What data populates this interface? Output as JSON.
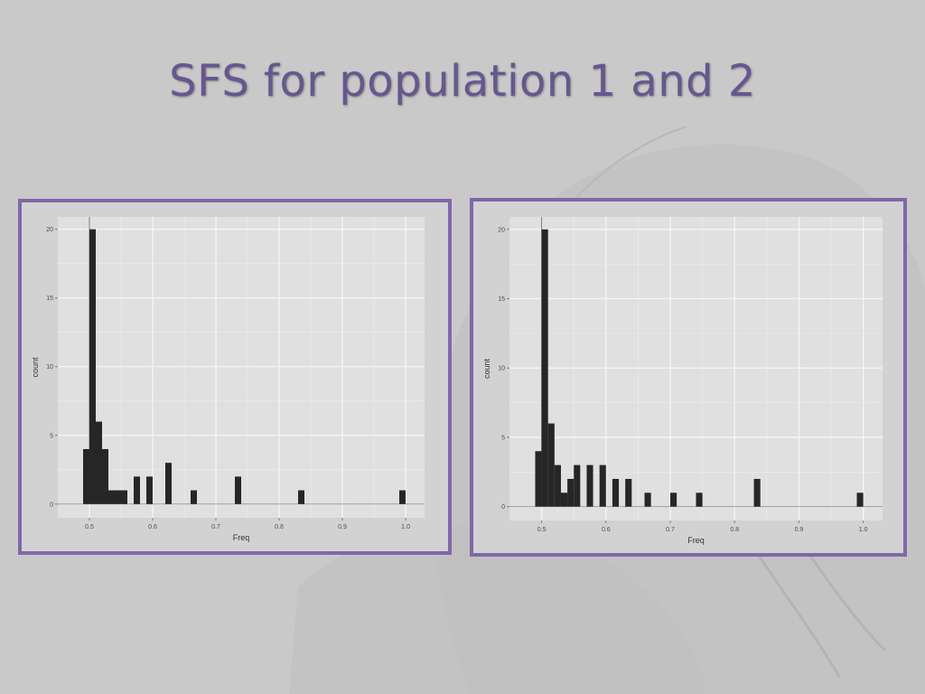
{
  "slide": {
    "title": "SFS for population 1 and 2"
  },
  "colors": {
    "background": "#c9c9c9",
    "title": "#66578f",
    "frame_border": "#8068a8",
    "panel": "#e0e0e0",
    "gridline": "#f5f5f5",
    "bar": "#262626"
  },
  "chart_data": [
    {
      "type": "bar",
      "xlabel": "Freq",
      "ylabel": "count",
      "xlim": [
        0.45,
        1.03
      ],
      "ylim": [
        -1,
        20.9
      ],
      "xticks": [
        "0.5",
        "0.6",
        "0.7",
        "0.8",
        "0.9",
        "1.0"
      ],
      "yticks": [
        "0",
        "5",
        "10",
        "15",
        "20"
      ],
      "bin_width": 0.01,
      "x": [
        0.49,
        0.5,
        0.51,
        0.52,
        0.53,
        0.54,
        0.55,
        0.57,
        0.59,
        0.62,
        0.66,
        0.73,
        0.83,
        0.99
      ],
      "values": [
        4,
        20,
        6,
        4,
        1,
        1,
        1,
        2,
        2,
        3,
        1,
        2,
        1,
        1
      ],
      "grid": true,
      "legend": "none"
    },
    {
      "type": "bar",
      "xlabel": "Freq",
      "ylabel": "count",
      "xlim": [
        0.45,
        1.03
      ],
      "ylim": [
        -1,
        20.9
      ],
      "xticks": [
        "0.5",
        "0.6",
        "0.7",
        "0.8",
        "0.9",
        "1.0"
      ],
      "yticks": [
        "0",
        "5",
        "10",
        "15",
        "20"
      ],
      "bin_width": 0.01,
      "x": [
        0.49,
        0.5,
        0.51,
        0.52,
        0.53,
        0.54,
        0.55,
        0.57,
        0.59,
        0.61,
        0.63,
        0.66,
        0.7,
        0.74,
        0.83,
        0.99
      ],
      "values": [
        4,
        20,
        6,
        3,
        1,
        2,
        3,
        3,
        3,
        2,
        2,
        1,
        1,
        1,
        2,
        1
      ],
      "grid": true,
      "legend": "none"
    }
  ]
}
